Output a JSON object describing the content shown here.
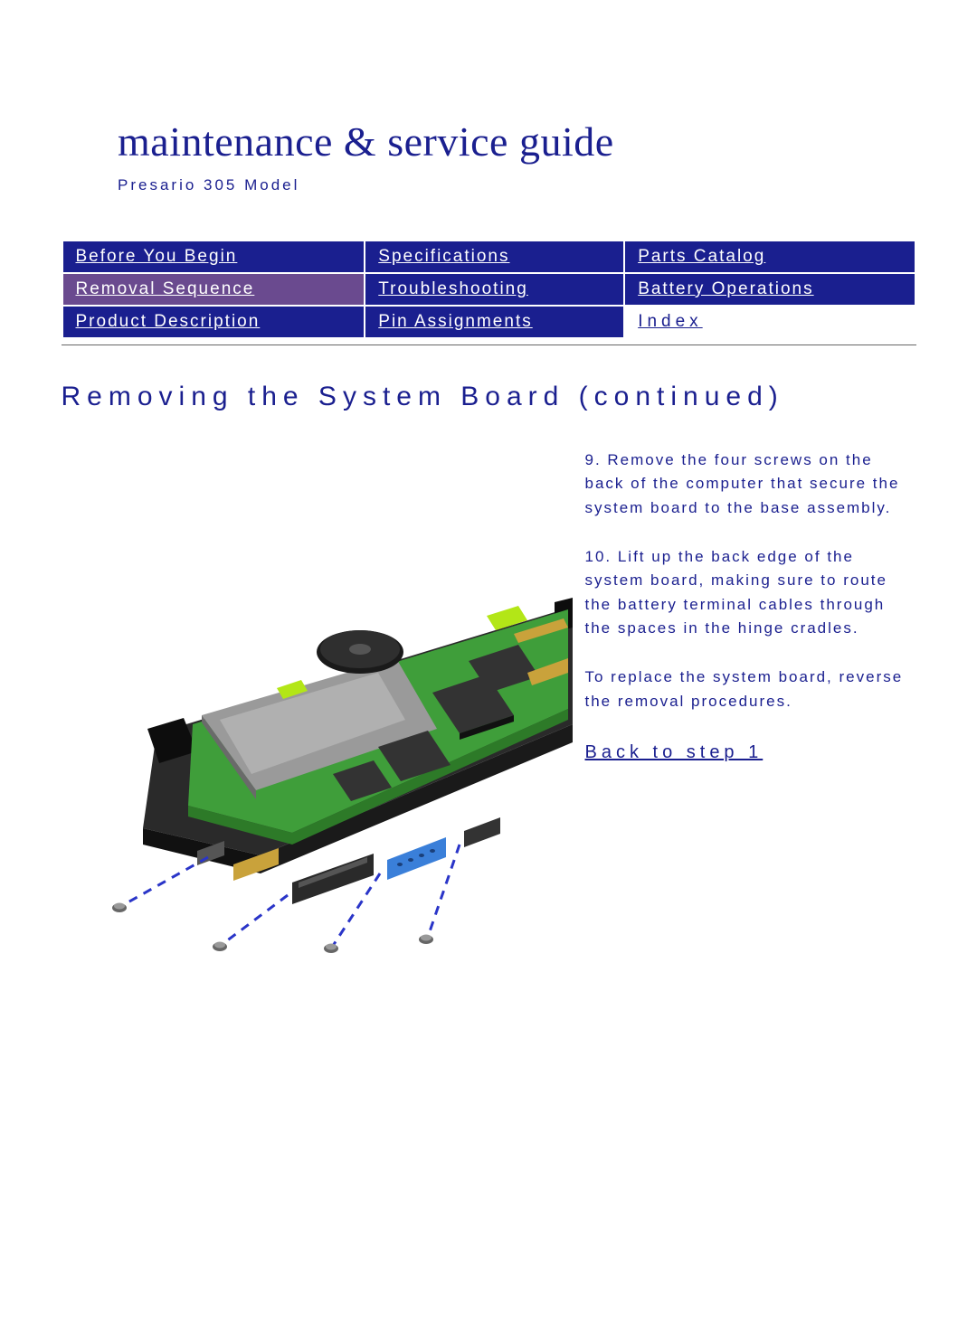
{
  "colors": {
    "nav_bg": "#1a1f8f",
    "nav_active_bg": "#6a4a8f",
    "nav_text": "#ffffff",
    "nav_index_text": "#1a1f8f",
    "nav_index_bg": "#ffffff",
    "heading_text": "#1a1f8f",
    "body_text": "#1a1f8f",
    "link_text": "#1a1f8f",
    "title_text": "#1a1f8f",
    "subtitle_text": "#1a1f8f",
    "board_green": "#3f9e3a",
    "board_green_dark": "#2d7a28",
    "board_dark": "#2a2a2a",
    "board_black": "#111111",
    "board_grey": "#888888",
    "accent_bright": "#b3e617",
    "port_blue": "#3a7fd9",
    "screw_line": "#2a35c8",
    "chip_dark": "#333333"
  },
  "typography": {
    "title_size": "46px",
    "subtitle_size": "17px",
    "nav_size": "19px",
    "heading_size": "30px",
    "body_size": "17px",
    "backlink_size": "20px"
  },
  "header": {
    "title": "maintenance & service guide",
    "subtitle": "Presario 305 Model"
  },
  "nav": {
    "rows": [
      [
        {
          "label": "Before You Begin",
          "active": false
        },
        {
          "label": "Specifications",
          "active": false
        },
        {
          "label": "Parts Catalog",
          "active": false
        }
      ],
      [
        {
          "label": "Removal Sequence",
          "active": true
        },
        {
          "label": "Troubleshooting",
          "active": false
        },
        {
          "label": "Battery Operations",
          "active": false
        }
      ],
      [
        {
          "label": "Product Description",
          "active": false
        },
        {
          "label": "Pin Assignments",
          "active": false
        },
        {
          "label": "Index",
          "active": false,
          "index_cell": true
        }
      ]
    ]
  },
  "page": {
    "heading": "Removing the System Board (continued)",
    "paragraphs": [
      "9. Remove the four screws on the back of the computer that secure the system board to the base assembly.",
      "10. Lift up the back edge of the system board, making sure to route the battery terminal cables through the spaces in the hinge cradles.",
      "To replace the system board, reverse the removal procedures."
    ],
    "back_link": "Back to step 1"
  }
}
